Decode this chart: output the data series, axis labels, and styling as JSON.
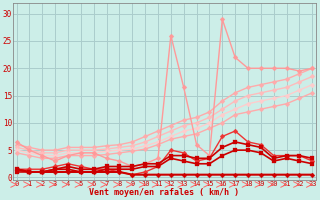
{
  "background_color": "#cceee8",
  "grid_color": "#aacccc",
  "x_labels": [
    "0",
    "1",
    "2",
    "3",
    "4",
    "5",
    "6",
    "7",
    "8",
    "9",
    "10",
    "11",
    "12",
    "13",
    "14",
    "15",
    "16",
    "17",
    "18",
    "19",
    "20",
    "21",
    "22",
    "23"
  ],
  "xlabel": "Vent moyen/en rafales ( km/h )",
  "ylabel_ticks": [
    0,
    5,
    10,
    15,
    20,
    25,
    30
  ],
  "ylim": [
    -0.5,
    32
  ],
  "xlim": [
    -0.3,
    23.3
  ],
  "series": [
    {
      "x": [
        0,
        1,
        2,
        3,
        4,
        5,
        6,
        7,
        8,
        9,
        10,
        11,
        12,
        13,
        14,
        15,
        16,
        17,
        18,
        19,
        20,
        21,
        22,
        23
      ],
      "y": [
        6.0,
        5.5,
        5.0,
        5.0,
        5.5,
        5.5,
        5.5,
        5.8,
        6.0,
        6.5,
        7.5,
        8.5,
        9.5,
        10.5,
        11.0,
        12.0,
        14.0,
        15.5,
        16.5,
        17.0,
        17.5,
        18.0,
        19.0,
        20.0
      ],
      "color": "#ffaaaa",
      "lw": 1.0,
      "marker": "D",
      "ms": 2.5
    },
    {
      "x": [
        0,
        1,
        2,
        3,
        4,
        5,
        6,
        7,
        8,
        9,
        10,
        11,
        12,
        13,
        14,
        15,
        16,
        17,
        18,
        19,
        20,
        21,
        22,
        23
      ],
      "y": [
        5.5,
        5.0,
        4.5,
        4.5,
        5.0,
        5.0,
        5.0,
        5.2,
        5.5,
        5.8,
        6.5,
        7.5,
        8.5,
        9.5,
        10.0,
        11.0,
        12.5,
        14.0,
        15.0,
        15.5,
        16.0,
        16.5,
        17.5,
        18.5
      ],
      "color": "#ffbbbb",
      "lw": 1.0,
      "marker": "D",
      "ms": 2.5
    },
    {
      "x": [
        0,
        1,
        2,
        3,
        4,
        5,
        6,
        7,
        8,
        9,
        10,
        11,
        12,
        13,
        14,
        15,
        16,
        17,
        18,
        19,
        20,
        21,
        22,
        23
      ],
      "y": [
        5.0,
        4.5,
        4.0,
        4.0,
        4.5,
        4.5,
        4.5,
        4.8,
        5.0,
        5.2,
        5.8,
        6.5,
        7.5,
        8.5,
        9.0,
        10.0,
        11.5,
        12.5,
        13.5,
        14.0,
        14.5,
        15.0,
        16.0,
        17.0
      ],
      "color": "#ffcccc",
      "lw": 1.0,
      "marker": "D",
      "ms": 2.5
    },
    {
      "x": [
        0,
        1,
        2,
        3,
        4,
        5,
        6,
        7,
        8,
        9,
        10,
        11,
        12,
        13,
        14,
        15,
        16,
        17,
        18,
        19,
        20,
        21,
        22,
        23
      ],
      "y": [
        4.5,
        4.0,
        3.5,
        3.5,
        4.0,
        4.0,
        4.0,
        4.2,
        4.5,
        4.8,
        5.2,
        6.0,
        7.0,
        7.5,
        8.0,
        9.0,
        10.0,
        11.5,
        12.0,
        12.5,
        13.0,
        13.5,
        14.5,
        15.5
      ],
      "color": "#ffaaaa",
      "lw": 1.0,
      "marker": "D",
      "ms": 2.5
    },
    {
      "x": [
        0,
        1,
        2,
        3,
        4,
        5,
        6,
        7,
        8,
        9,
        10,
        11,
        12,
        13,
        14,
        15,
        16,
        17,
        18,
        19,
        20,
        21,
        22,
        23
      ],
      "y": [
        6.5,
        5.0,
        4.0,
        3.0,
        4.0,
        4.5,
        4.5,
        3.5,
        3.0,
        2.0,
        2.5,
        3.5,
        26.0,
        16.5,
        6.0,
        4.0,
        29.0,
        22.0,
        20.0,
        20.0,
        20.0,
        20.0,
        19.5,
        20.0
      ],
      "color": "#ff9999",
      "lw": 1.0,
      "marker": "D",
      "ms": 2.5
    },
    {
      "x": [
        0,
        1,
        2,
        3,
        4,
        5,
        6,
        7,
        8,
        9,
        10,
        11,
        12,
        13,
        14,
        15,
        16,
        17,
        18,
        19,
        20,
        21,
        22,
        23
      ],
      "y": [
        1.5,
        1.5,
        1.5,
        2.0,
        2.5,
        2.0,
        1.5,
        1.5,
        1.0,
        0.5,
        1.0,
        2.0,
        5.0,
        4.5,
        3.0,
        3.5,
        7.5,
        8.5,
        6.5,
        6.0,
        4.0,
        4.0,
        4.0,
        3.0
      ],
      "color": "#ee3333",
      "lw": 1.0,
      "marker": "D",
      "ms": 2.5
    },
    {
      "x": [
        0,
        1,
        2,
        3,
        4,
        5,
        6,
        7,
        8,
        9,
        10,
        11,
        12,
        13,
        14,
        15,
        16,
        17,
        18,
        19,
        20,
        21,
        22,
        23
      ],
      "y": [
        1.5,
        1.0,
        1.0,
        1.0,
        1.0,
        1.0,
        1.0,
        1.0,
        1.0,
        0.5,
        0.5,
        0.5,
        0.5,
        0.5,
        0.5,
        0.5,
        0.5,
        0.5,
        0.5,
        0.5,
        0.5,
        0.5,
        0.5,
        0.5
      ],
      "color": "#cc0000",
      "lw": 1.5,
      "marker": "D",
      "ms": 2.5
    },
    {
      "x": [
        0,
        1,
        2,
        3,
        4,
        5,
        6,
        7,
        8,
        9,
        10,
        11,
        12,
        13,
        14,
        15,
        16,
        17,
        18,
        19,
        20,
        21,
        22,
        23
      ],
      "y": [
        1.5,
        1.0,
        1.0,
        1.5,
        2.0,
        1.5,
        1.5,
        2.0,
        2.0,
        2.0,
        2.5,
        2.5,
        4.0,
        4.0,
        3.5,
        3.5,
        5.5,
        6.5,
        6.0,
        5.5,
        3.5,
        4.0,
        4.0,
        3.5
      ],
      "color": "#cc0000",
      "lw": 1.2,
      "marker": "s",
      "ms": 2.5
    },
    {
      "x": [
        0,
        1,
        2,
        3,
        4,
        5,
        6,
        7,
        8,
        9,
        10,
        11,
        12,
        13,
        14,
        15,
        16,
        17,
        18,
        19,
        20,
        21,
        22,
        23
      ],
      "y": [
        1.0,
        1.0,
        1.0,
        1.5,
        1.5,
        1.0,
        1.0,
        1.5,
        1.5,
        1.5,
        2.0,
        2.0,
        3.5,
        3.0,
        2.5,
        2.5,
        4.0,
        5.0,
        5.0,
        4.5,
        3.0,
        3.5,
        3.0,
        2.5
      ],
      "color": "#cc0000",
      "lw": 1.2,
      "marker": "s",
      "ms": 2.5
    }
  ],
  "arrow_color": "#ff6666"
}
